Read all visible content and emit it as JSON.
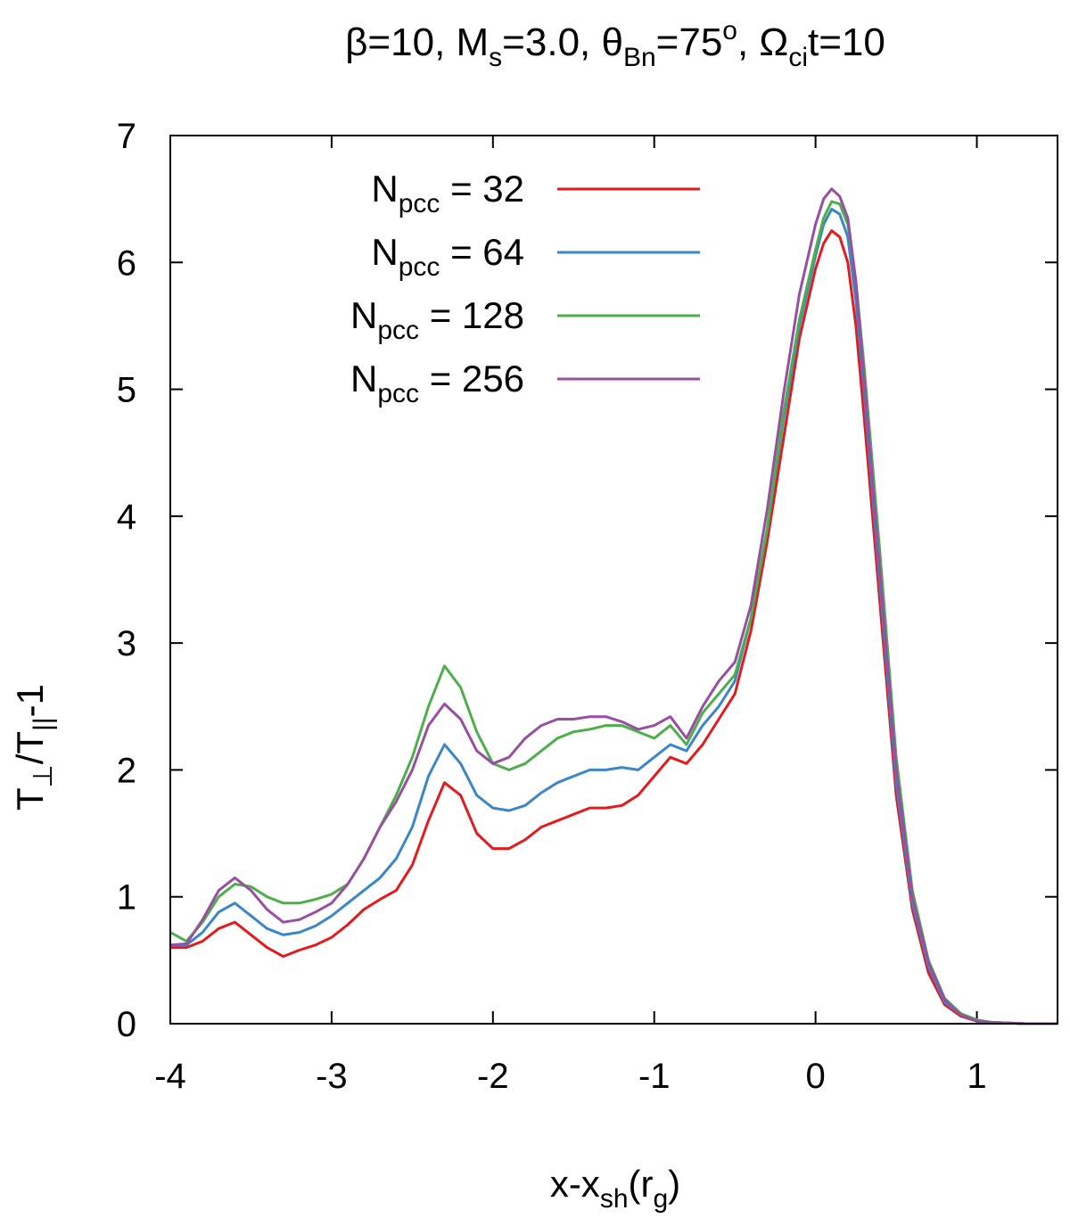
{
  "chart_data": {
    "type": "line",
    "title": {
      "beta": "β=10, M",
      "ms_sub": "s",
      "ms_val": "=3.0, θ",
      "th_sub": "Bn",
      "th_val": "=75",
      "th_sup": "o",
      "omega": ",  Ω",
      "om_sub": "ci",
      "om_val": "t=10"
    },
    "xlabel": {
      "main": "x-x",
      "sub1": "sh",
      "mid": "(r",
      "sub2": "g",
      "end": ")"
    },
    "ylabel": {
      "t1": "T",
      "perp": "⊥",
      "slash": "/T",
      "par": "||",
      "end": "-1"
    },
    "xlim": [
      -4,
      1.5
    ],
    "ylim": [
      0,
      7
    ],
    "xticks": [
      -4,
      -3,
      -2,
      -1,
      0,
      1
    ],
    "xtick_labels": [
      "-4",
      "-3",
      "-2",
      "-1",
      "0",
      "1"
    ],
    "yticks": [
      0,
      1,
      2,
      3,
      4,
      5,
      6,
      7
    ],
    "ytick_labels": [
      "0",
      "1",
      "2",
      "3",
      "4",
      "5",
      "6",
      "7"
    ],
    "legend_position": "top-left",
    "series": [
      {
        "prefix": "N",
        "sub": "pcc",
        "value": " =  32",
        "color": "#e41a1c",
        "x": [
          -4,
          -3.9,
          -3.8,
          -3.7,
          -3.6,
          -3.5,
          -3.4,
          -3.3,
          -3.2,
          -3.1,
          -3.0,
          -2.9,
          -2.8,
          -2.7,
          -2.6,
          -2.5,
          -2.4,
          -2.3,
          -2.2,
          -2.1,
          -2.0,
          -1.9,
          -1.8,
          -1.7,
          -1.6,
          -1.5,
          -1.4,
          -1.3,
          -1.2,
          -1.1,
          -1.0,
          -0.9,
          -0.8,
          -0.7,
          -0.6,
          -0.5,
          -0.4,
          -0.3,
          -0.2,
          -0.1,
          0.0,
          0.05,
          0.1,
          0.15,
          0.2,
          0.25,
          0.3,
          0.4,
          0.5,
          0.6,
          0.7,
          0.8,
          0.9,
          1.0,
          1.1,
          1.2,
          1.3,
          1.4,
          1.5
        ],
        "y": [
          0.6,
          0.6,
          0.65,
          0.75,
          0.8,
          0.7,
          0.6,
          0.53,
          0.58,
          0.62,
          0.68,
          0.78,
          0.9,
          0.98,
          1.05,
          1.25,
          1.6,
          1.9,
          1.8,
          1.5,
          1.38,
          1.38,
          1.45,
          1.55,
          1.6,
          1.65,
          1.7,
          1.7,
          1.72,
          1.8,
          1.95,
          2.1,
          2.05,
          2.2,
          2.4,
          2.6,
          3.1,
          3.8,
          4.6,
          5.4,
          5.95,
          6.15,
          6.25,
          6.2,
          6.0,
          5.5,
          4.8,
          3.3,
          1.8,
          0.9,
          0.4,
          0.15,
          0.06,
          0.02,
          0.01,
          0.005,
          0.0,
          0.0,
          0.0
        ]
      },
      {
        "prefix": "N",
        "sub": "pcc",
        "value": " =  64",
        "color": "#3a86c8",
        "x": [
          -4,
          -3.9,
          -3.8,
          -3.7,
          -3.6,
          -3.5,
          -3.4,
          -3.3,
          -3.2,
          -3.1,
          -3.0,
          -2.9,
          -2.8,
          -2.7,
          -2.6,
          -2.5,
          -2.4,
          -2.3,
          -2.2,
          -2.1,
          -2.0,
          -1.9,
          -1.8,
          -1.7,
          -1.6,
          -1.5,
          -1.4,
          -1.3,
          -1.2,
          -1.1,
          -1.0,
          -0.9,
          -0.8,
          -0.7,
          -0.6,
          -0.5,
          -0.4,
          -0.3,
          -0.2,
          -0.1,
          0.0,
          0.05,
          0.1,
          0.15,
          0.2,
          0.25,
          0.3,
          0.4,
          0.5,
          0.6,
          0.7,
          0.8,
          0.9,
          1.0,
          1.1,
          1.2,
          1.3,
          1.4,
          1.5
        ],
        "y": [
          0.62,
          0.62,
          0.72,
          0.88,
          0.95,
          0.85,
          0.75,
          0.7,
          0.72,
          0.77,
          0.85,
          0.95,
          1.05,
          1.15,
          1.3,
          1.55,
          1.95,
          2.2,
          2.05,
          1.8,
          1.7,
          1.68,
          1.72,
          1.82,
          1.9,
          1.95,
          2.0,
          2.0,
          2.02,
          2.0,
          2.1,
          2.2,
          2.15,
          2.35,
          2.5,
          2.7,
          3.2,
          3.9,
          4.75,
          5.5,
          6.05,
          6.3,
          6.42,
          6.38,
          6.2,
          5.7,
          5.0,
          3.45,
          1.9,
          0.95,
          0.45,
          0.17,
          0.07,
          0.02,
          0.01,
          0.005,
          0.0,
          0.0,
          0.0
        ]
      },
      {
        "prefix": "N",
        "sub": "pcc",
        "value": " =  128",
        "color": "#4daf4a",
        "x": [
          -4,
          -3.9,
          -3.8,
          -3.7,
          -3.6,
          -3.5,
          -3.4,
          -3.3,
          -3.2,
          -3.1,
          -3.0,
          -2.9,
          -2.8,
          -2.7,
          -2.6,
          -2.5,
          -2.4,
          -2.3,
          -2.2,
          -2.1,
          -2.0,
          -1.9,
          -1.8,
          -1.7,
          -1.6,
          -1.5,
          -1.4,
          -1.3,
          -1.2,
          -1.1,
          -1.0,
          -0.9,
          -0.8,
          -0.7,
          -0.6,
          -0.5,
          -0.4,
          -0.3,
          -0.2,
          -0.1,
          0.0,
          0.05,
          0.1,
          0.15,
          0.2,
          0.25,
          0.3,
          0.4,
          0.5,
          0.6,
          0.7,
          0.8,
          0.9,
          1.0,
          1.1,
          1.2,
          1.3,
          1.4,
          1.5
        ],
        "y": [
          0.72,
          0.65,
          0.8,
          1.0,
          1.1,
          1.08,
          1.0,
          0.95,
          0.95,
          0.98,
          1.02,
          1.1,
          1.3,
          1.55,
          1.8,
          2.1,
          2.5,
          2.82,
          2.65,
          2.3,
          2.05,
          2.0,
          2.05,
          2.15,
          2.25,
          2.3,
          2.32,
          2.35,
          2.35,
          2.3,
          2.25,
          2.35,
          2.2,
          2.45,
          2.6,
          2.75,
          3.2,
          3.9,
          4.8,
          5.55,
          6.1,
          6.35,
          6.48,
          6.46,
          6.3,
          5.85,
          5.2,
          3.7,
          2.1,
          1.05,
          0.5,
          0.2,
          0.08,
          0.03,
          0.01,
          0.005,
          0.0,
          0.0,
          0.0
        ]
      },
      {
        "prefix": "N",
        "sub": "pcc",
        "value": " =  256",
        "color": "#984ea3",
        "x": [
          -4,
          -3.9,
          -3.8,
          -3.7,
          -3.6,
          -3.5,
          -3.4,
          -3.3,
          -3.2,
          -3.1,
          -3.0,
          -2.9,
          -2.8,
          -2.7,
          -2.6,
          -2.5,
          -2.4,
          -2.3,
          -2.2,
          -2.1,
          -2.0,
          -1.9,
          -1.8,
          -1.7,
          -1.6,
          -1.5,
          -1.4,
          -1.3,
          -1.2,
          -1.1,
          -1.0,
          -0.9,
          -0.8,
          -0.7,
          -0.6,
          -0.5,
          -0.4,
          -0.3,
          -0.2,
          -0.1,
          0.0,
          0.05,
          0.1,
          0.15,
          0.2,
          0.25,
          0.3,
          0.4,
          0.5,
          0.6,
          0.7,
          0.8,
          0.9,
          1.0,
          1.1,
          1.2,
          1.3,
          1.4,
          1.5
        ],
        "y": [
          0.62,
          0.63,
          0.82,
          1.05,
          1.15,
          1.05,
          0.9,
          0.8,
          0.82,
          0.88,
          0.95,
          1.1,
          1.3,
          1.55,
          1.75,
          2.0,
          2.35,
          2.52,
          2.4,
          2.15,
          2.05,
          2.1,
          2.25,
          2.35,
          2.4,
          2.4,
          2.42,
          2.42,
          2.38,
          2.32,
          2.35,
          2.42,
          2.25,
          2.5,
          2.7,
          2.85,
          3.3,
          4.05,
          4.95,
          5.75,
          6.3,
          6.5,
          6.58,
          6.52,
          6.35,
          5.85,
          5.1,
          3.55,
          2.0,
          1.0,
          0.48,
          0.19,
          0.07,
          0.02,
          0.01,
          0.005,
          0.0,
          0.0,
          0.0
        ]
      }
    ]
  }
}
